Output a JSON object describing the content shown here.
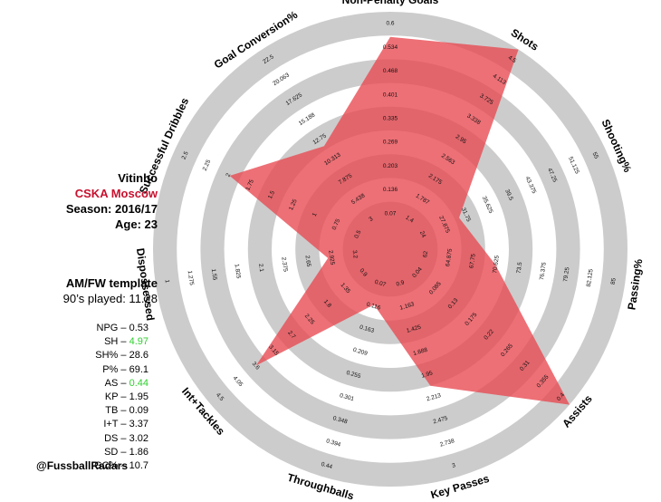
{
  "player": {
    "name": "Vitinho",
    "club": "CSKA Moscow",
    "season": "Season: 2016/17",
    "age": "Age: 23"
  },
  "template": {
    "name": "AM/FW template",
    "minutes": "90’s played: 11.28"
  },
  "stats": [
    {
      "label": "NPG",
      "value": "0.53",
      "highlight": false
    },
    {
      "label": "SH",
      "value": "4.97",
      "highlight": true
    },
    {
      "label": "SH%",
      "value": "28.6",
      "highlight": false
    },
    {
      "label": "P%",
      "value": "69.1",
      "highlight": false
    },
    {
      "label": "AS",
      "value": "0.44",
      "highlight": true
    },
    {
      "label": "KP",
      "value": "1.95",
      "highlight": false
    },
    {
      "label": "TB",
      "value": "0.09",
      "highlight": false
    },
    {
      "label": "I+T",
      "value": "3.37",
      "highlight": false
    },
    {
      "label": "DS",
      "value": "3.02",
      "highlight": false
    },
    {
      "label": "SD",
      "value": "1.86",
      "highlight": false
    },
    {
      "label": "GC%",
      "value": "10.7",
      "highlight": false
    }
  ],
  "credit": "@FussballRadars",
  "colors": {
    "fill": "#e8484f",
    "ring": "#cccccc",
    "club": "#c8102e",
    "highlight": "#2fcf2f"
  },
  "chart_data": {
    "type": "radar",
    "grid": "alternating grey rings",
    "axes": [
      {
        "name": "Non-Penalty Goals",
        "ticks": [
          "0.07",
          "0.136",
          "0.203",
          "0.269",
          "0.335",
          "0.401",
          "0.468",
          "0.534",
          "0.6"
        ],
        "value": 0.53
      },
      {
        "name": "Shots",
        "ticks": [
          "1.4",
          "1.787",
          "2.175",
          "2.563",
          "2.95",
          "3.338",
          "3.725",
          "4.113",
          "4.5"
        ],
        "value": 4.97
      },
      {
        "name": "Shooting%",
        "ticks": [
          "24",
          "27.875",
          "31.75",
          "35.625",
          "39.5",
          "43.375",
          "47.25",
          "51.125",
          "55"
        ],
        "value": 28.6
      },
      {
        "name": "Passing%",
        "ticks": [
          "62",
          "64.875",
          "67.75",
          "70.625",
          "73.5",
          "76.375",
          "79.25",
          "82.125",
          "85"
        ],
        "value": 69.1
      },
      {
        "name": "Assists",
        "ticks": [
          "0.04",
          "0.085",
          "0.13",
          "0.175",
          "0.22",
          "0.265",
          "0.31",
          "0.355",
          "0.4"
        ],
        "value": 0.44
      },
      {
        "name": "Key Passes",
        "ticks": [
          "0.9",
          "1.163",
          "1.425",
          "1.688",
          "1.95",
          "2.213",
          "2.475",
          "2.738",
          "3"
        ],
        "value": 1.95
      },
      {
        "name": "Throughballs",
        "ticks": [
          "0.07",
          "0.116",
          "0.163",
          "0.209",
          "0.255",
          "0.301",
          "0.348",
          "0.394",
          "0.44"
        ],
        "value": 0.09
      },
      {
        "name": "Int+Tackles",
        "ticks": [
          "0.9",
          "1.35",
          "1.8",
          "2.25",
          "2.7",
          "3.15",
          "3.6",
          "4.05",
          "4.5"
        ],
        "value": 3.37
      },
      {
        "name": "Dispossessed",
        "ticks": [
          "3.2",
          "2.925",
          "2.65",
          "2.375",
          "2.1",
          "1.825",
          "1.55",
          "1.275",
          "1"
        ],
        "value": 3.02
      },
      {
        "name": "Successful Dribbles",
        "ticks": [
          "0.5",
          "0.75",
          "1",
          "1.25",
          "1.5",
          "1.75",
          "2",
          "2.25",
          "2.5"
        ],
        "value": 1.86
      },
      {
        "name": "Goal Conversion%",
        "ticks": [
          "3",
          "5.438",
          "7.875",
          "10.313",
          "12.75",
          "15.188",
          "17.625",
          "20.063",
          "22.5"
        ],
        "value": 10.7
      }
    ]
  }
}
